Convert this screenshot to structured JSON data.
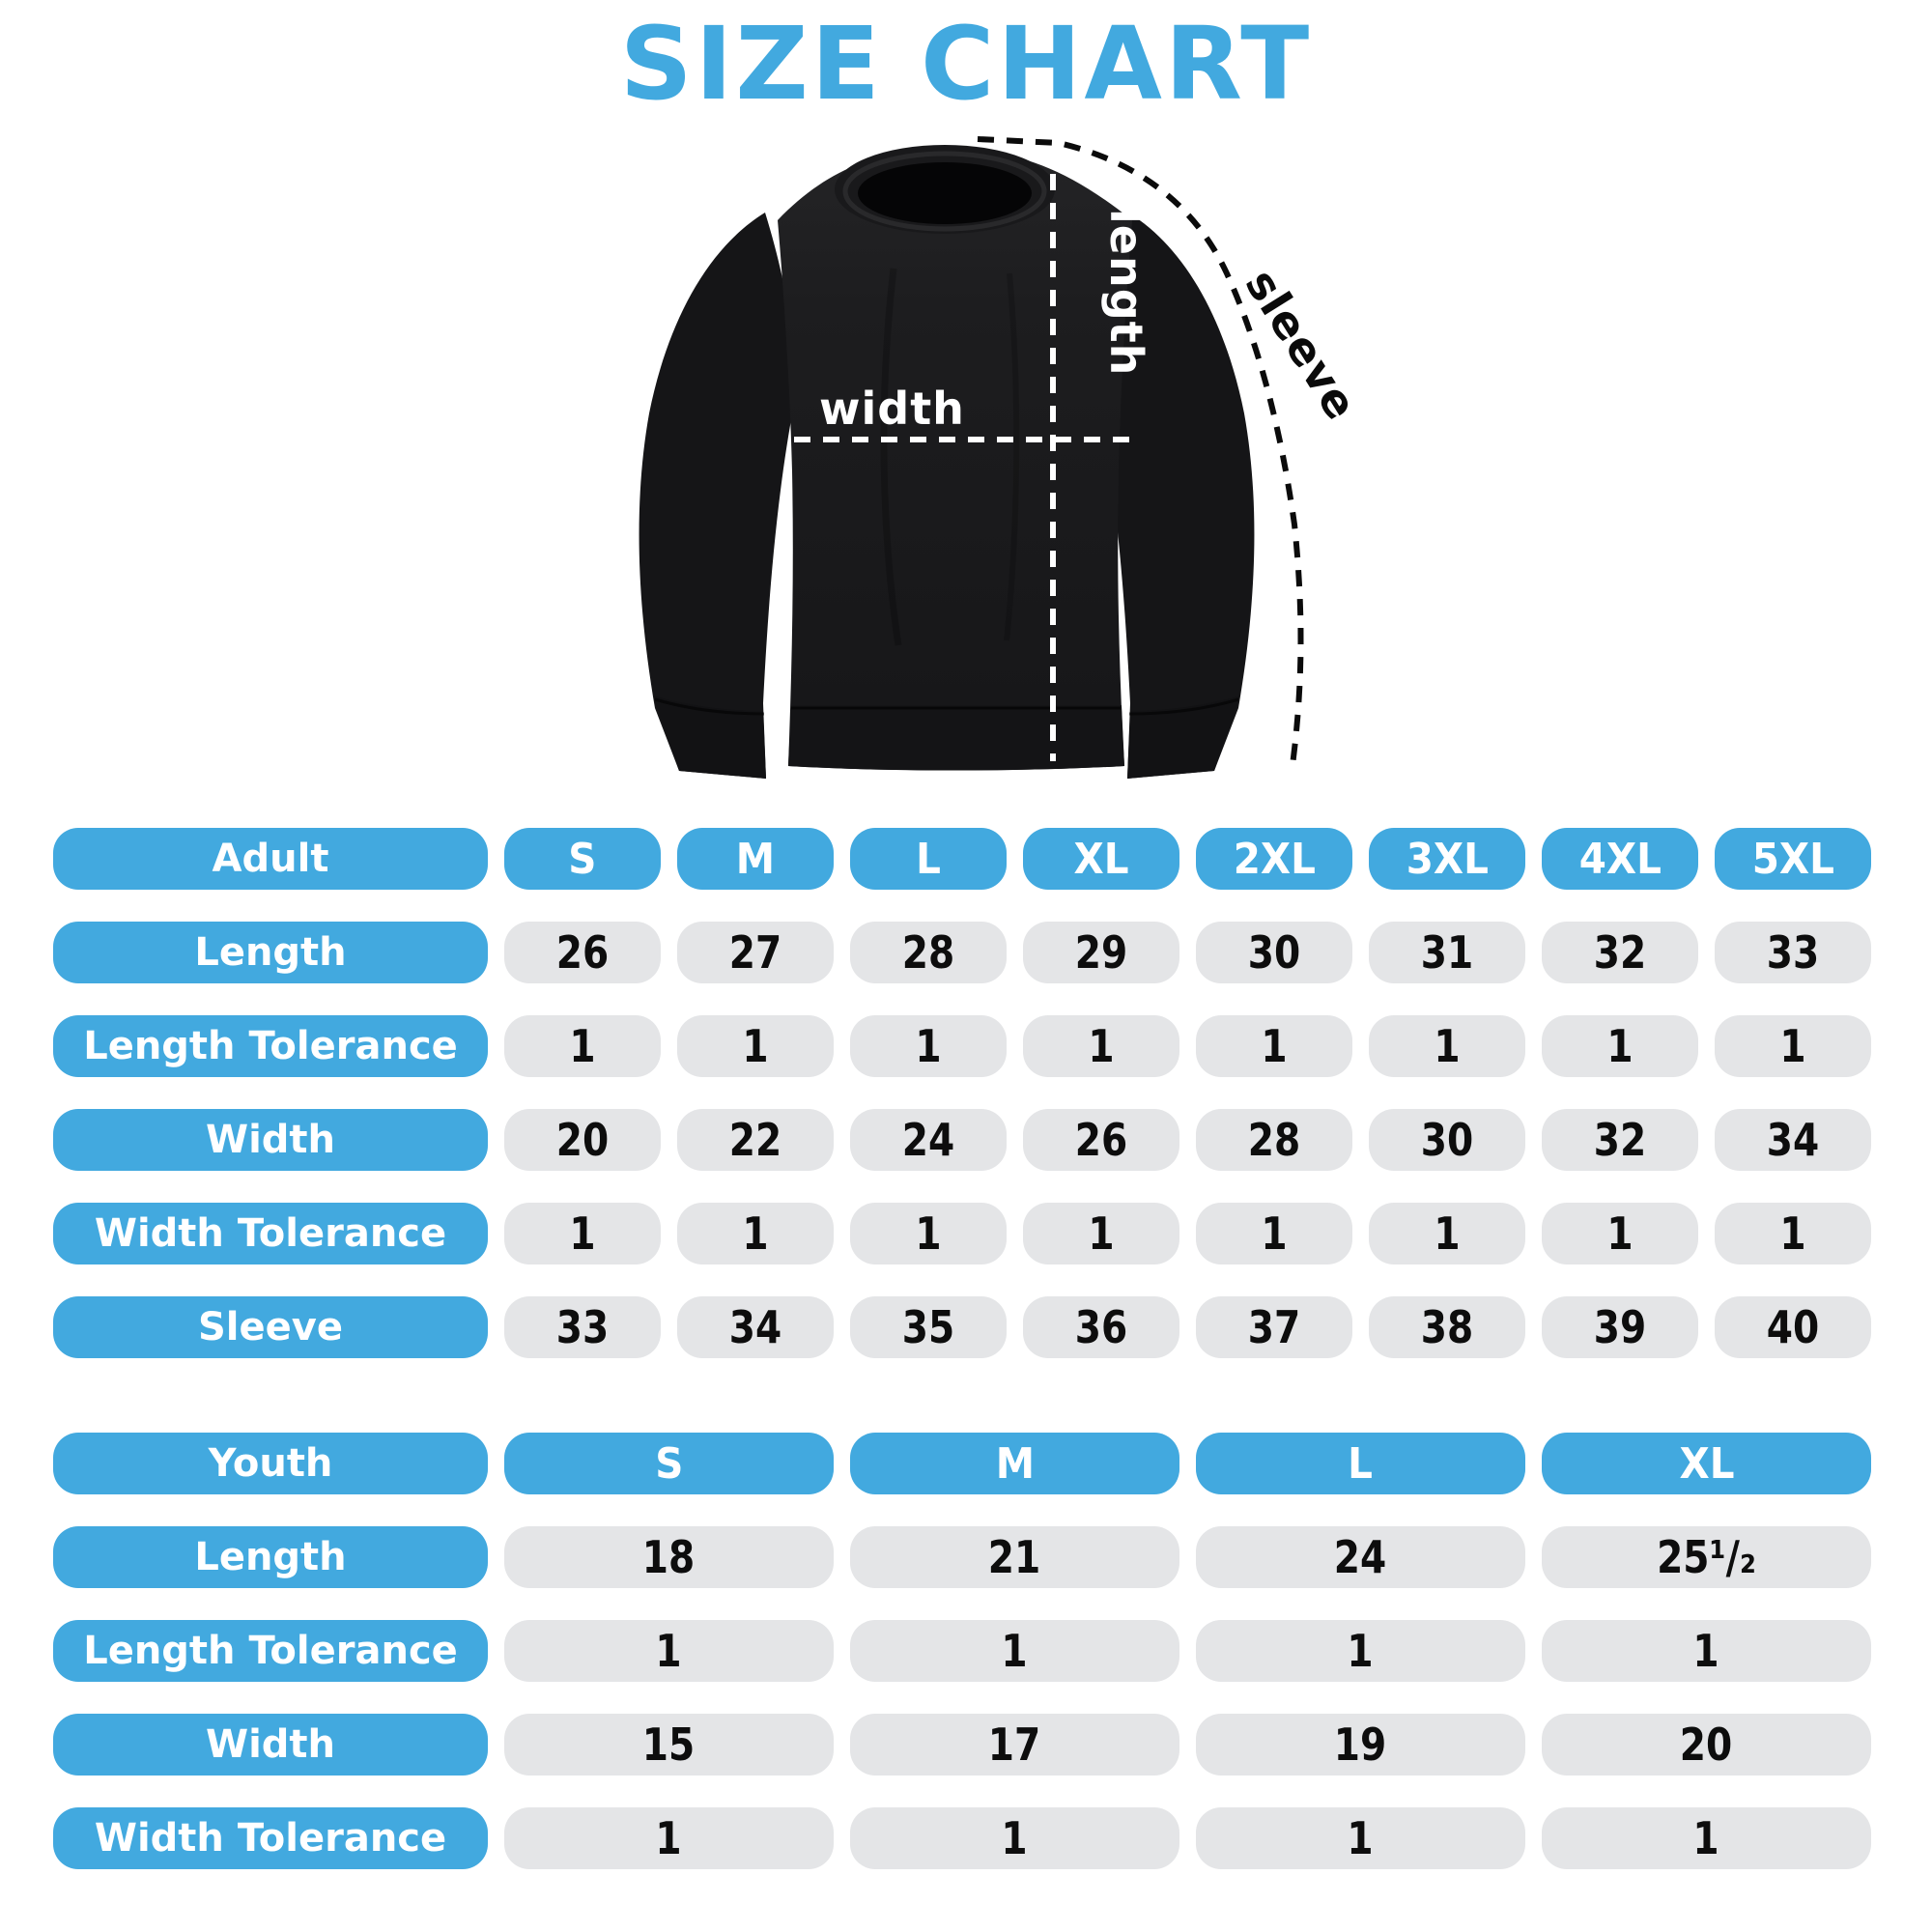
{
  "title": "SIZE CHART",
  "colors": {
    "accent_blue": "#42A9DF",
    "cell_gray": "#E4E5E7",
    "garment_black": "#1c1c1e",
    "value_text": "#0d0d0d",
    "background": "#ffffff"
  },
  "diagram": {
    "labels": {
      "width": "width",
      "length": "length",
      "sleeve": "sleeve"
    }
  },
  "chart_data": [
    {
      "type": "table",
      "name": "Adult size table",
      "columns": [
        "Adult",
        "S",
        "M",
        "L",
        "XL",
        "2XL",
        "3XL",
        "4XL",
        "5XL"
      ],
      "rows": [
        [
          "Length",
          26,
          27,
          28,
          29,
          30,
          31,
          32,
          33
        ],
        [
          "Length Tolerance",
          1,
          1,
          1,
          1,
          1,
          1,
          1,
          1
        ],
        [
          "Width",
          20,
          22,
          24,
          26,
          28,
          30,
          32,
          34
        ],
        [
          "Width Tolerance",
          1,
          1,
          1,
          1,
          1,
          1,
          1,
          1
        ],
        [
          "Sleeve",
          33,
          34,
          35,
          36,
          37,
          38,
          39,
          40
        ]
      ]
    },
    {
      "type": "table",
      "name": "Youth size table",
      "columns": [
        "Youth",
        "S",
        "M",
        "L",
        "XL"
      ],
      "rows": [
        [
          "Length",
          18,
          21,
          24,
          "25¹/₂"
        ],
        [
          "Length Tolerance",
          1,
          1,
          1,
          1
        ],
        [
          "Width",
          15,
          17,
          19,
          20
        ],
        [
          "Width Tolerance",
          1,
          1,
          1,
          1
        ]
      ]
    }
  ]
}
